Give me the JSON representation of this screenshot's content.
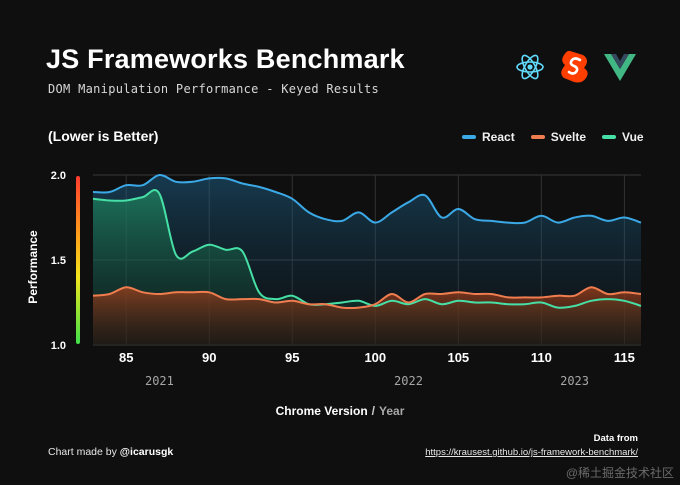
{
  "header": {
    "title": "JS Frameworks Benchmark",
    "subtitle": "DOM Manipulation Performance - Keyed Results"
  },
  "logos": [
    "react-icon",
    "svelte-icon",
    "vue-icon"
  ],
  "note": "(Lower is Better)",
  "footer": {
    "credit_prefix": "Chart made by",
    "credit_handle": "@icarusgk",
    "source_title": "Data from",
    "source_url": "https://krausest.github.io/js-framework-benchmark/",
    "watermark": "@稀土掘金技术社区"
  },
  "chart_data": {
    "type": "area",
    "title": "JS Frameworks Benchmark",
    "subtitle": "DOM Manipulation Performance - Keyed Results",
    "xlabel": "Chrome Version",
    "xlabel_secondary": "Year",
    "ylabel": "Performance",
    "xlim": [
      83,
      116
    ],
    "ylim": [
      1.0,
      2.0
    ],
    "xticks": [
      85,
      90,
      95,
      100,
      105,
      110,
      115
    ],
    "yticks": [
      1.0,
      1.5,
      2.0
    ],
    "year_labels": [
      {
        "x": 87,
        "label": "2021"
      },
      {
        "x": 102,
        "label": "2022"
      },
      {
        "x": 112,
        "label": "2023"
      }
    ],
    "grid": true,
    "legend_position": "top-right",
    "colors": {
      "React": "#3ba9e6",
      "Svelte": "#ef7d4f",
      "Vue": "#46e0a6"
    },
    "series": [
      {
        "name": "React",
        "x": [
          83,
          84,
          85,
          86,
          87,
          88,
          89,
          90,
          91,
          92,
          93,
          94,
          95,
          96,
          97,
          98,
          99,
          100,
          101,
          102,
          103,
          104,
          105,
          106,
          107,
          108,
          109,
          110,
          111,
          112,
          113,
          114,
          115,
          116
        ],
        "values": [
          1.9,
          1.9,
          1.94,
          1.94,
          2.0,
          1.96,
          1.96,
          1.98,
          1.98,
          1.95,
          1.93,
          1.9,
          1.86,
          1.78,
          1.74,
          1.73,
          1.78,
          1.72,
          1.78,
          1.84,
          1.88,
          1.75,
          1.8,
          1.74,
          1.73,
          1.72,
          1.72,
          1.76,
          1.72,
          1.75,
          1.76,
          1.73,
          1.75,
          1.72
        ]
      },
      {
        "name": "Svelte",
        "x": [
          83,
          84,
          85,
          86,
          87,
          88,
          89,
          90,
          91,
          92,
          93,
          94,
          95,
          96,
          97,
          98,
          99,
          100,
          101,
          102,
          103,
          104,
          105,
          106,
          107,
          108,
          109,
          110,
          111,
          112,
          113,
          114,
          115,
          116
        ],
        "values": [
          1.29,
          1.3,
          1.34,
          1.31,
          1.3,
          1.31,
          1.31,
          1.31,
          1.27,
          1.27,
          1.27,
          1.25,
          1.26,
          1.24,
          1.24,
          1.22,
          1.22,
          1.24,
          1.3,
          1.25,
          1.3,
          1.3,
          1.31,
          1.3,
          1.3,
          1.28,
          1.28,
          1.28,
          1.29,
          1.29,
          1.34,
          1.3,
          1.31,
          1.3
        ]
      },
      {
        "name": "Vue",
        "x": [
          83,
          84,
          85,
          86,
          87,
          88,
          89,
          90,
          91,
          92,
          93,
          94,
          95,
          96,
          97,
          98,
          99,
          100,
          101,
          102,
          103,
          104,
          105,
          106,
          107,
          108,
          109,
          110,
          111,
          112,
          113,
          114,
          115,
          116
        ],
        "values": [
          1.86,
          1.85,
          1.85,
          1.87,
          1.89,
          1.53,
          1.55,
          1.59,
          1.56,
          1.55,
          1.31,
          1.27,
          1.29,
          1.24,
          1.24,
          1.25,
          1.26,
          1.23,
          1.26,
          1.24,
          1.27,
          1.24,
          1.26,
          1.25,
          1.25,
          1.24,
          1.24,
          1.25,
          1.22,
          1.23,
          1.26,
          1.27,
          1.26,
          1.23
        ]
      }
    ]
  }
}
